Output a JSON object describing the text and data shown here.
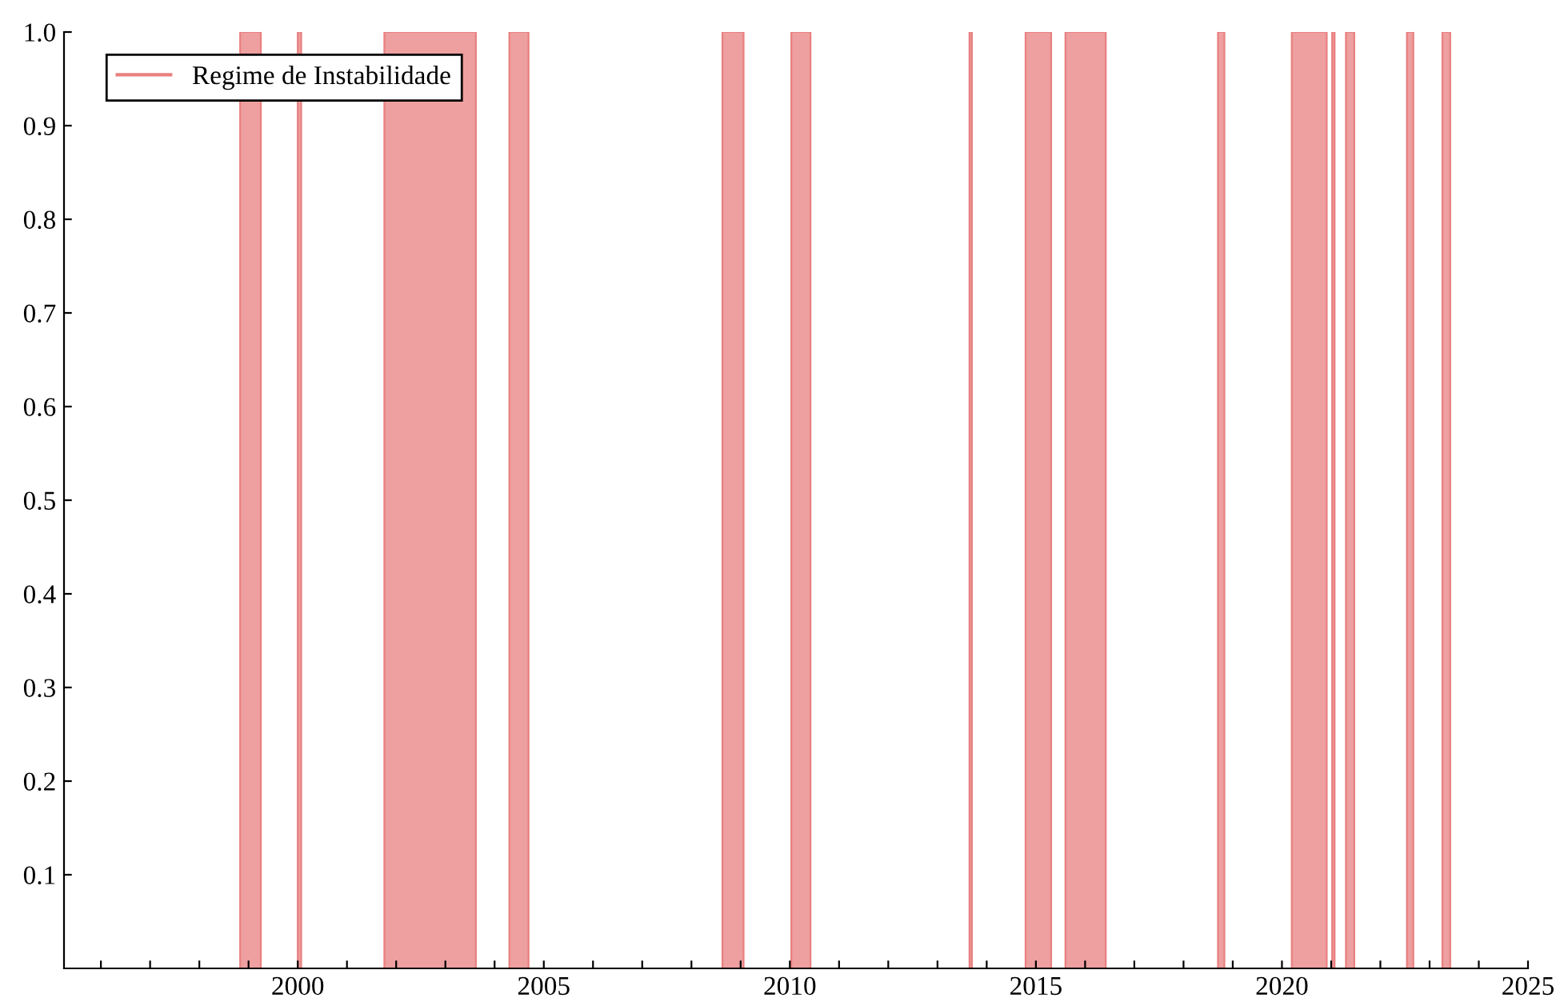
{
  "chart_data": {
    "type": "area",
    "x": [
      1998.83,
      1998.83,
      1999.25,
      1999.25,
      2000.0,
      2000.0,
      2000.07,
      2000.07,
      2001.76,
      2001.76,
      2003.62,
      2003.62,
      2004.3,
      2004.3,
      2004.69,
      2004.69,
      2008.63,
      2008.63,
      2009.06,
      2009.06,
      2010.03,
      2010.03,
      2010.42,
      2010.42,
      2013.65,
      2013.65,
      2013.7,
      2013.7,
      2014.79,
      2014.79,
      2015.31,
      2015.31,
      2015.6,
      2015.6,
      2016.42,
      2016.42,
      2018.7,
      2018.7,
      2018.83,
      2018.83,
      2020.2,
      2020.2,
      2020.91,
      2020.91,
      2021.02,
      2021.02,
      2021.07,
      2021.07,
      2021.3,
      2021.3,
      2021.47,
      2021.47,
      2022.54,
      2022.54,
      2022.67,
      2022.67,
      2023.26,
      2023.26,
      2023.42,
      2023.42
    ],
    "series": [
      {
        "name": "Regime de Instabilidade",
        "color": "#e88080",
        "values": [
          0,
          1,
          1,
          0,
          0,
          1,
          1,
          0,
          0,
          1,
          1,
          0,
          0,
          1,
          1,
          0,
          0,
          1,
          1,
          0,
          0,
          1,
          1,
          0,
          0,
          1,
          1,
          0,
          0,
          1,
          1,
          0,
          0,
          1,
          1,
          0,
          0,
          1,
          1,
          0,
          0,
          1,
          1,
          0,
          0,
          1,
          1,
          0,
          0,
          1,
          1,
          0,
          0,
          1,
          1,
          0,
          0,
          1,
          1,
          0
        ]
      }
    ],
    "xlim": [
      1995.25,
      2025
    ],
    "xticks": [
      {
        "value": 1996,
        "label": null
      },
      {
        "value": 1997,
        "label": null
      },
      {
        "value": 1998,
        "label": null
      },
      {
        "value": 1999,
        "label": null
      },
      2000,
      {
        "value": 2001,
        "label": null
      },
      {
        "value": 2002,
        "label": null
      },
      {
        "value": 2003,
        "label": null
      },
      {
        "value": 2004,
        "label": null
      },
      2005,
      {
        "value": 2006,
        "label": null
      },
      {
        "value": 2007,
        "label": null
      },
      {
        "value": 2008,
        "label": null
      },
      {
        "value": 2009,
        "label": null
      },
      2010,
      {
        "value": 2011,
        "label": null
      },
      {
        "value": 2012,
        "label": null
      },
      {
        "value": 2013,
        "label": null
      },
      {
        "value": 2014,
        "label": null
      },
      2015,
      {
        "value": 2016,
        "label": null
      },
      {
        "value": 2017,
        "label": null
      },
      {
        "value": 2018,
        "label": null
      },
      {
        "value": 2019,
        "label": null
      },
      2020,
      {
        "value": 2021,
        "label": null
      },
      {
        "value": 2022,
        "label": null
      },
      {
        "value": 2023,
        "label": null
      },
      {
        "value": 2024,
        "label": null
      },
      2025
    ],
    "ylim": [
      0,
      1.0
    ],
    "yticks": [
      0.1,
      0.2,
      0.3,
      0.4,
      0.5,
      0.6,
      0.7,
      0.8,
      0.9,
      {
        "value": 1,
        "label": "1.0"
      }
    ],
    "legend": "top left"
  }
}
